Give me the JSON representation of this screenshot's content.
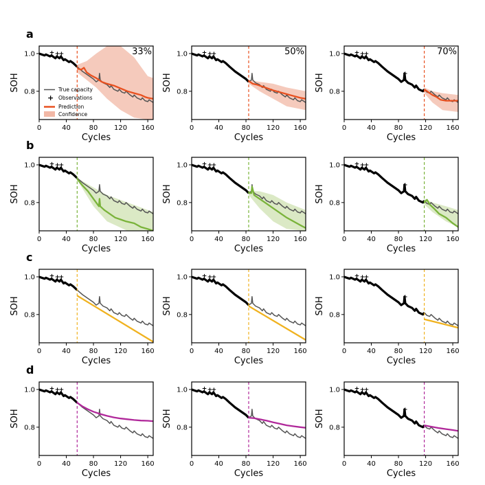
{
  "figure": {
    "row_letters": [
      "a",
      "b",
      "c",
      "d"
    ],
    "column_percentages": [
      "33%",
      "50%",
      "70%"
    ],
    "legend": {
      "true_capacity": "True capacity",
      "observations": "Observations",
      "prediction": "Prediction",
      "confidence": "Confidence"
    }
  },
  "colors": {
    "true_capacity": "#555555",
    "observations": "#000000",
    "row_a": "#e8501f",
    "row_a_band": "#f2b8a6",
    "row_b": "#7ab33a",
    "row_b_band": "#cfe2b2",
    "row_c": "#f0b21f",
    "row_d": "#b0289a"
  },
  "chart_data": {
    "type": "line",
    "layout": "grid 4 rows x 3 columns of panels",
    "xlabel": "Cycles",
    "ylabel": "SOH",
    "xlim": [
      0,
      168
    ],
    "ylim": [
      0.65,
      1.04
    ],
    "xticks": [
      0,
      40,
      80,
      120,
      160
    ],
    "yticks": [
      0.8,
      1.0
    ],
    "ytick_labels": [
      "0.8",
      "1.0"
    ],
    "split_cycles": [
      56,
      84,
      118
    ],
    "true_capacity": {
      "name": "True capacity",
      "x": [
        0,
        8,
        10,
        16,
        18,
        24,
        26,
        30,
        32,
        36,
        38,
        44,
        46,
        50,
        56,
        64,
        72,
        80,
        84,
        86,
        88,
        89,
        90,
        94,
        100,
        104,
        106,
        110,
        116,
        118,
        122,
        126,
        128,
        134,
        138,
        140,
        144,
        150,
        152,
        156,
        160,
        162,
        168
      ],
      "y": [
        1.0,
        0.99,
        0.995,
        0.985,
        0.99,
        0.975,
        0.985,
        0.975,
        0.985,
        0.965,
        0.97,
        0.955,
        0.96,
        0.95,
        0.93,
        0.905,
        0.885,
        0.865,
        0.85,
        0.855,
        0.86,
        0.895,
        0.86,
        0.845,
        0.835,
        0.82,
        0.83,
        0.81,
        0.8,
        0.81,
        0.795,
        0.79,
        0.8,
        0.78,
        0.77,
        0.78,
        0.765,
        0.755,
        0.765,
        0.75,
        0.745,
        0.755,
        0.74
      ]
    },
    "panels": [
      {
        "row": "a",
        "col": 0,
        "split": 56,
        "label": "33%",
        "color": "row_a",
        "band": "row_a_band",
        "prediction": {
          "x": [
            56,
            62,
            66,
            70,
            76,
            84,
            92,
            100,
            110,
            120,
            130,
            140,
            150,
            156,
            160,
            168
          ],
          "y": [
            0.92,
            0.915,
            0.925,
            0.9,
            0.885,
            0.87,
            0.85,
            0.84,
            0.83,
            0.815,
            0.8,
            0.79,
            0.78,
            0.77,
            0.765,
            0.76
          ]
        },
        "confidence": {
          "x": [
            56,
            70,
            84,
            100,
            120,
            140,
            160,
            168
          ],
          "upper": [
            0.94,
            0.96,
            1.0,
            1.04,
            1.04,
            0.98,
            0.88,
            0.87
          ],
          "lower": [
            0.9,
            0.86,
            0.82,
            0.76,
            0.7,
            0.66,
            0.65,
            0.65
          ]
        }
      },
      {
        "row": "a",
        "col": 1,
        "split": 84,
        "label": "50%",
        "color": "row_a",
        "band": "row_a_band",
        "prediction": {
          "x": [
            84,
            90,
            96,
            104,
            112,
            120,
            130,
            140,
            150,
            160,
            168
          ],
          "y": [
            0.855,
            0.84,
            0.835,
            0.825,
            0.815,
            0.805,
            0.795,
            0.785,
            0.775,
            0.765,
            0.76
          ]
        },
        "confidence": {
          "x": [
            84,
            100,
            120,
            140,
            168
          ],
          "upper": [
            0.86,
            0.85,
            0.84,
            0.82,
            0.8
          ],
          "lower": [
            0.84,
            0.8,
            0.76,
            0.72,
            0.7
          ]
        }
      },
      {
        "row": "a",
        "col": 2,
        "split": 118,
        "label": "70%",
        "color": "row_a",
        "band": "row_a_band",
        "prediction": {
          "x": [
            118,
            124,
            130,
            136,
            142,
            150,
            160,
            168
          ],
          "y": [
            0.81,
            0.795,
            0.78,
            0.77,
            0.755,
            0.75,
            0.75,
            0.75
          ]
        },
        "confidence": {
          "x": [
            118,
            130,
            145,
            168
          ],
          "upper": [
            0.82,
            0.8,
            0.79,
            0.78
          ],
          "lower": [
            0.79,
            0.74,
            0.7,
            0.69
          ]
        }
      },
      {
        "row": "b",
        "col": 0,
        "split": 56,
        "label": "",
        "color": "row_b",
        "band": "row_b_band",
        "prediction": {
          "x": [
            56,
            64,
            72,
            80,
            88,
            89,
            90,
            96,
            104,
            112,
            120,
            128,
            140,
            150,
            160,
            168
          ],
          "y": [
            0.925,
            0.89,
            0.86,
            0.82,
            0.78,
            0.82,
            0.78,
            0.76,
            0.74,
            0.72,
            0.71,
            0.7,
            0.69,
            0.67,
            0.66,
            0.65
          ]
        },
        "confidence": {
          "x": [
            56,
            80,
            100,
            130,
            168
          ],
          "upper": [
            0.93,
            0.88,
            0.84,
            0.8,
            0.75
          ],
          "lower": [
            0.92,
            0.78,
            0.7,
            0.65,
            0.65
          ]
        }
      },
      {
        "row": "b",
        "col": 1,
        "split": 84,
        "label": "",
        "color": "row_b",
        "band": "row_b_band",
        "prediction": {
          "x": [
            84,
            88,
            89,
            92,
            100,
            108,
            116,
            124,
            132,
            140,
            150,
            160,
            168
          ],
          "y": [
            0.85,
            0.85,
            0.885,
            0.84,
            0.82,
            0.8,
            0.78,
            0.76,
            0.74,
            0.72,
            0.7,
            0.68,
            0.665
          ]
        },
        "confidence": {
          "x": [
            84,
            100,
            120,
            140,
            168
          ],
          "upper": [
            0.86,
            0.86,
            0.84,
            0.8,
            0.76
          ],
          "lower": [
            0.84,
            0.77,
            0.7,
            0.66,
            0.65
          ]
        }
      },
      {
        "row": "b",
        "col": 2,
        "split": 118,
        "label": "",
        "color": "row_b",
        "band": "row_b_band",
        "prediction": {
          "x": [
            118,
            122,
            126,
            132,
            140,
            150,
            160,
            168
          ],
          "y": [
            0.8,
            0.815,
            0.79,
            0.77,
            0.74,
            0.72,
            0.69,
            0.67
          ]
        },
        "confidence": {
          "x": [
            118,
            130,
            150,
            168
          ],
          "upper": [
            0.82,
            0.8,
            0.78,
            0.76
          ],
          "lower": [
            0.79,
            0.75,
            0.7,
            0.67
          ]
        }
      },
      {
        "row": "c",
        "col": 0,
        "split": 56,
        "label": "",
        "color": "row_c",
        "band": "",
        "prediction": {
          "x": [
            56,
            168
          ],
          "y": [
            0.9,
            0.655
          ]
        },
        "confidence": null
      },
      {
        "row": "c",
        "col": 1,
        "split": 84,
        "label": "",
        "color": "row_c",
        "band": "",
        "prediction": {
          "x": [
            84,
            168
          ],
          "y": [
            0.845,
            0.665
          ]
        },
        "confidence": null
      },
      {
        "row": "c",
        "col": 2,
        "split": 118,
        "label": "",
        "color": "row_c",
        "band": "",
        "prediction": {
          "x": [
            118,
            168
          ],
          "y": [
            0.775,
            0.73
          ]
        },
        "confidence": null
      },
      {
        "row": "d",
        "col": 0,
        "split": 56,
        "label": "",
        "color": "row_d",
        "band": "",
        "prediction": {
          "x": [
            56,
            64,
            72,
            80,
            90,
            100,
            110,
            120,
            130,
            140,
            150,
            160,
            168
          ],
          "y": [
            0.93,
            0.91,
            0.895,
            0.882,
            0.87,
            0.86,
            0.852,
            0.846,
            0.842,
            0.838,
            0.835,
            0.834,
            0.832
          ]
        },
        "confidence": null
      },
      {
        "row": "d",
        "col": 1,
        "split": 84,
        "label": "",
        "color": "row_d",
        "band": "",
        "prediction": {
          "x": [
            84,
            92,
            100,
            110,
            120,
            130,
            140,
            150,
            160,
            168
          ],
          "y": [
            0.85,
            0.848,
            0.842,
            0.835,
            0.826,
            0.818,
            0.81,
            0.805,
            0.8,
            0.797
          ]
        },
        "confidence": null
      },
      {
        "row": "d",
        "col": 2,
        "split": 118,
        "label": "",
        "color": "row_d",
        "band": "",
        "prediction": {
          "x": [
            118,
            125,
            132,
            140,
            150,
            160,
            168
          ],
          "y": [
            0.81,
            0.805,
            0.8,
            0.795,
            0.79,
            0.785,
            0.78
          ]
        },
        "confidence": null
      }
    ]
  }
}
